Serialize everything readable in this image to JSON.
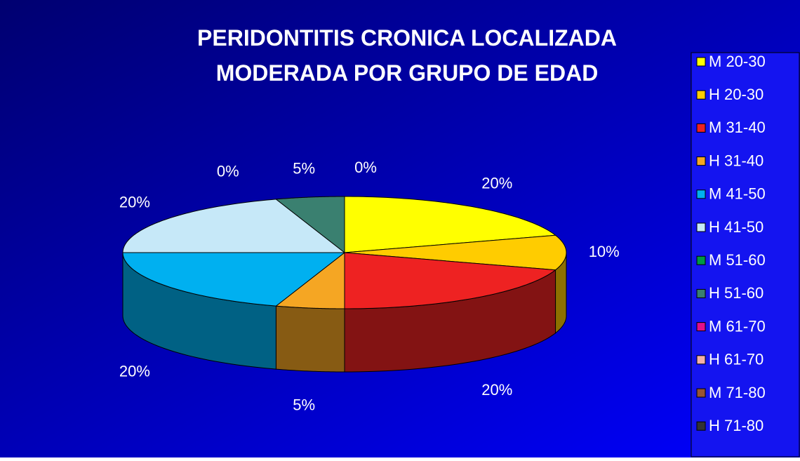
{
  "chart_data": {
    "type": "pie",
    "title": "PERIDONTITIS CRONICA LOCALIZADA MODERADA POR GRUPO DE EDAD",
    "categories": [
      "M 20-30",
      "H 20-30",
      "M 31-40",
      "H 31-40",
      "M 41-50",
      "H 41-50",
      "M 51-60",
      "H 51-60",
      "M 61-70",
      "H 61-70",
      "M 71-80",
      "H 71-80"
    ],
    "values": [
      20,
      10,
      20,
      5,
      20,
      20,
      0,
      5,
      0,
      0,
      0,
      0
    ],
    "value_labels": [
      "20%",
      "10%",
      "20%",
      "5%",
      "20%",
      "20%",
      "0%",
      "5%",
      "0%",
      null,
      null,
      null
    ],
    "colors": [
      "#ffff00",
      "#ffcc00",
      "#ee2222",
      "#f5a623",
      "#00b0f0",
      "#c6e8f8",
      "#009944",
      "#3a8070",
      "#e0108a",
      "#f4b0a8",
      "#995533",
      "#333333"
    ],
    "legend": "right"
  }
}
